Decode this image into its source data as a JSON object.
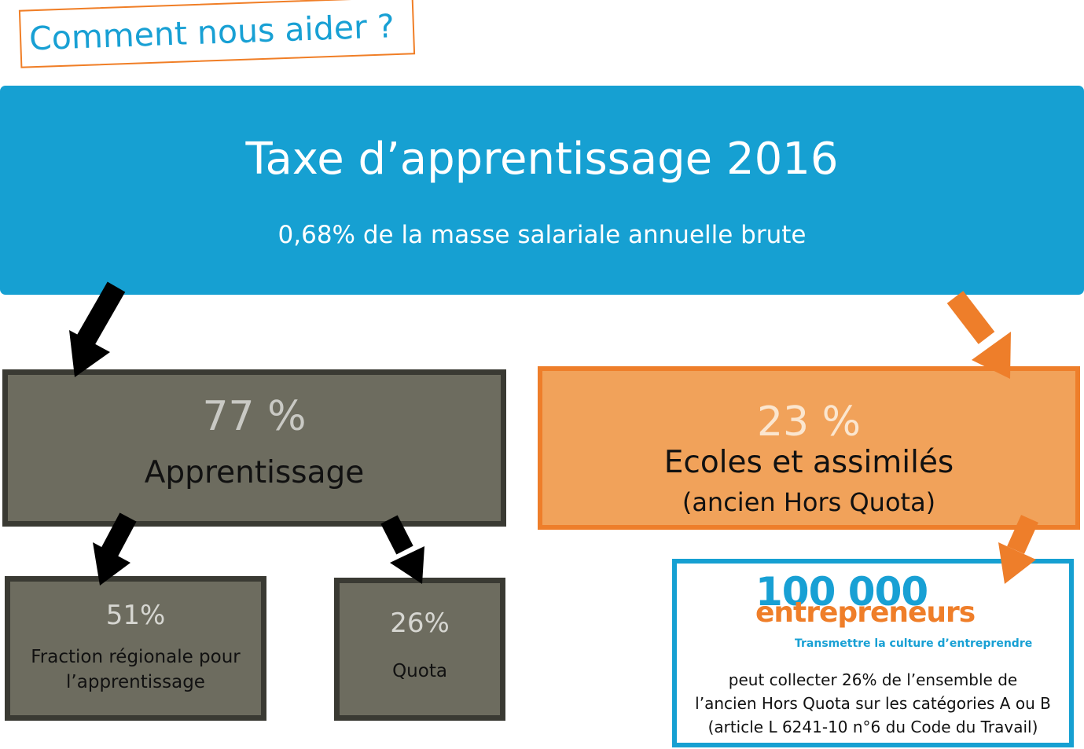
{
  "header": {
    "title": "Comment nous aider ?"
  },
  "tax": {
    "title": "Taxe d’apprentissage 2016",
    "subtitle": "0,68% de la masse salariale annuelle brute"
  },
  "apprentissage": {
    "percent": "77 %",
    "label": "Apprentissage",
    "split": [
      {
        "percent": "51%",
        "label_line1": "Fraction régionale pour",
        "label_line2": "l’apprentissage"
      },
      {
        "percent": "26%",
        "label": "Quota"
      }
    ]
  },
  "ecoles": {
    "percent": "23 %",
    "label": "Ecoles et assimilés",
    "sublabel": "(ancien Hors Quota)"
  },
  "organisation": {
    "logo_number": "100 000",
    "logo_word": "entrepreneurs",
    "logo_tagline": "Transmettre la culture d’entreprendre",
    "description": [
      "peut collecter 26% de l’ensemble de",
      "l’ancien Hors Quota sur les catégories A ou B",
      "(article L 6241-10 n°6 du Code du Travail)"
    ]
  },
  "colors": {
    "blue": "#16a0d2",
    "orange": "#ee7e2a",
    "grey": "#6d6c5f",
    "dark_border": "#3a3a33",
    "arrow_black": "#000000"
  }
}
